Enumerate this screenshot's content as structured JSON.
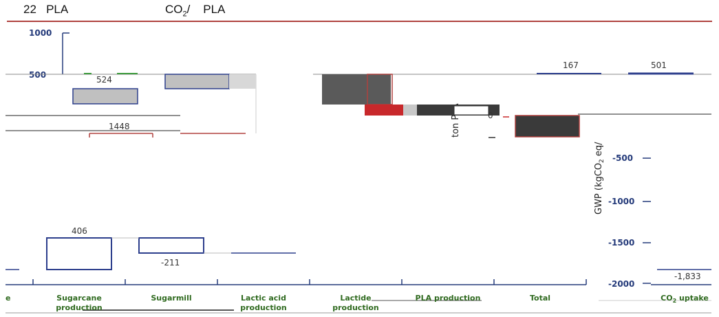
{
  "header": {
    "num": "22",
    "left_word": "PLA",
    "co2_main": "CO",
    "co2_sub": "2",
    "co2_suffix": "/",
    "right_word": "PLA"
  },
  "chart_data": {
    "type": "bar",
    "ylabel": "GWP (kgCO2 eq/ton PLA)",
    "ylim": [
      -2000,
      1000
    ],
    "yticks": [
      "1000",
      "500",
      "-500",
      "-1000",
      "-1500",
      "-2000"
    ],
    "categories": [
      "Sugarcane production",
      "Sugarmill",
      "Lactic acid production",
      "Lactide production",
      "PLA production",
      "Total",
      "CO2 uptake"
    ],
    "category_label_parts": [
      [
        "Sugarcane",
        "production"
      ],
      [
        "Sugarmill"
      ],
      [
        "Lactic acid",
        "production"
      ],
      [
        "Lactide",
        "production"
      ],
      [
        "PLA production"
      ],
      [
        "Total"
      ],
      [
        "CO",
        "2",
        " uptake"
      ]
    ],
    "values": [
      406,
      -211,
      524,
      1448,
      167,
      501,
      -1833
    ],
    "value_labels": [
      "406",
      "-211",
      "524",
      "1448",
      "167",
      "501",
      "-1,833"
    ],
    "colors": {
      "axis": "#243a7a",
      "bar_outline": "#2c3e8c",
      "grey_fill": "#c0c0c0",
      "dark_fill": "#3a3a3a",
      "red_fill": "#c8282b",
      "red_outline": "#b0413e",
      "category_text": "#2f6a1f"
    },
    "fragment": "0"
  }
}
